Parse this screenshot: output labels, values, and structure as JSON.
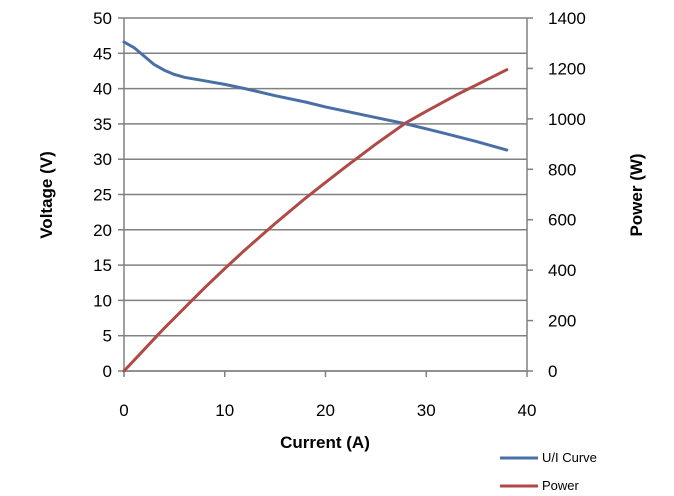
{
  "chart_data": {
    "type": "line",
    "xlabel": "Current (A)",
    "ylabel_left": "Voltage (V)",
    "ylabel_right": "Power (W)",
    "xlim": [
      0,
      40
    ],
    "ylim_left": [
      0,
      50
    ],
    "ylim_right": [
      0,
      1400
    ],
    "x_ticks": [
      "0",
      "10",
      "20",
      "30",
      "40"
    ],
    "y_left_ticks": [
      "0",
      "5",
      "10",
      "15",
      "20",
      "25",
      "30",
      "35",
      "40",
      "45",
      "50"
    ],
    "y_right_ticks": [
      "0",
      "200",
      "400",
      "600",
      "800",
      "1000",
      "1200",
      "1400"
    ],
    "grid": true,
    "legend_position": "bottom-right",
    "series": [
      {
        "name": "U/I Curve",
        "axis": "left",
        "color": "#4A6FA5",
        "x": [
          0,
          1,
          2,
          3,
          4,
          5,
          6,
          8,
          10,
          12,
          15,
          18,
          20,
          22,
          25,
          28,
          30,
          32,
          35,
          38
        ],
        "y": [
          46.6,
          45.8,
          44.6,
          43.4,
          42.6,
          42.0,
          41.6,
          41.1,
          40.6,
          40.0,
          39.0,
          38.1,
          37.4,
          36.8,
          35.9,
          35.0,
          34.3,
          33.6,
          32.5,
          31.3
        ]
      },
      {
        "name": "Power",
        "axis": "right",
        "color": "#B04A46",
        "x": [
          0,
          2,
          4,
          6,
          8,
          10,
          12,
          15,
          18,
          20,
          22,
          25,
          28,
          30,
          33,
          36,
          38
        ],
        "y": [
          0,
          85,
          170,
          250,
          330,
          406,
          480,
          585,
          685,
          748,
          810,
          900,
          985,
          1030,
          1095,
          1155,
          1195
        ]
      }
    ]
  }
}
